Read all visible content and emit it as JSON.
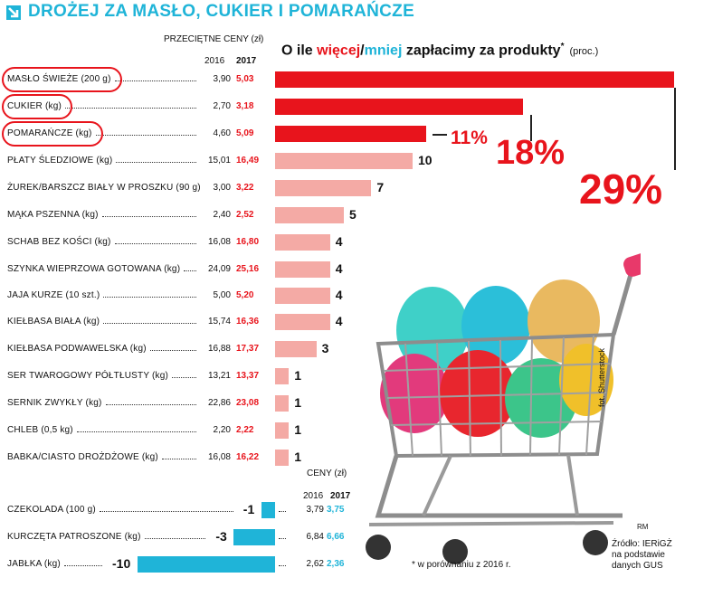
{
  "title": "DROŻEJ ZA MASŁO, CUKIER I POMARAŃCZE",
  "header_prices": "PRZECIĘTNE CENY (zł)",
  "year_2016": "2016",
  "year_2017": "2017",
  "chart_head": {
    "pre": "O ile ",
    "more": "więcej",
    "slash": "/",
    "less": "mniej",
    "post": " zapłacimy za produkty",
    "asterisk": "*",
    "unit": "(proc.)"
  },
  "header_prices2": "CENY (zł)",
  "footnote": "* w porównaniu z 2016 r.",
  "photo_credit": "fot. Shutterstock",
  "source": [
    "Źródło: IERiGŻ",
    "na podstawie",
    "danych GUS"
  ],
  "author": "RM",
  "colors": {
    "accent_red": "#e8141c",
    "pink_bar": "#f4aaa5",
    "cyan": "#1fb4d8"
  },
  "chart_data": {
    "type": "bar",
    "title": "O ile więcej/mniej zapłacimy za produkty* (proc.)",
    "ylabel": "(proc.)",
    "categories": [
      "MASŁO ŚWIEŻE (200 g)",
      "CUKIER (kg)",
      "POMARAŃCZE (kg)",
      "PŁATY ŚLEDZIOWE (kg)",
      "ŻUREK/BARSZCZ BIAŁY W PROSZKU (90 g)",
      "MĄKA PSZENNA (kg)",
      "SCHAB BEZ KOŚCI (kg)",
      "SZYNKA WIEPRZOWA GOTOWANA (kg)",
      "JAJA KURZE (10 szt.)",
      "KIEŁBASA BIAŁA (kg)",
      "KIEŁBASA PODWAWELSKA (kg)",
      "SER TWAROGOWY PÓŁTŁUSTY (kg)",
      "SERNIK ZWYKŁY (kg)",
      "CHLEB (0,5 kg)",
      "BABKA/CIASTO DROŻDŻOWE (kg)",
      "CZEKOLADA (100 g)",
      "KURCZĘTA PATROSZONE (kg)",
      "JABŁKA (kg)"
    ],
    "values": [
      29,
      18,
      11,
      10,
      7,
      5,
      4,
      4,
      4,
      4,
      3,
      1,
      1,
      1,
      1,
      -1,
      -3,
      -10
    ],
    "labels": [
      "29%",
      "18%",
      "11%",
      "10",
      "7",
      "5",
      "4",
      "4",
      "4",
      "4",
      "3",
      "1",
      "1",
      "1",
      "1",
      "-1",
      "-3",
      "-10"
    ],
    "price_2016": [
      "3,90",
      "2,70",
      "4,60",
      "15,01",
      "3,00",
      "2,40",
      "16,08",
      "24,09",
      "5,00",
      "15,74",
      "16,88",
      "13,21",
      "22,86",
      "2,20",
      "16,08",
      "3,79",
      "6,84",
      "2,62"
    ],
    "price_2017": [
      "5,03",
      "3,18",
      "5,09",
      "16,49",
      "3,22",
      "2,52",
      "16,80",
      "25,16",
      "5,20",
      "16,36",
      "17,37",
      "13,37",
      "23,08",
      "2,22",
      "16,22",
      "3,75",
      "6,66",
      "2,36"
    ],
    "highlighted": [
      true,
      true,
      true,
      false,
      false,
      false,
      false,
      false,
      false,
      false,
      false,
      false,
      false,
      false,
      false,
      false,
      false,
      false
    ]
  }
}
